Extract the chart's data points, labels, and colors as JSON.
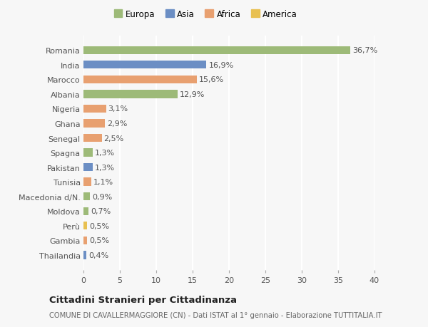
{
  "categories": [
    "Thailandia",
    "Gambia",
    "Perù",
    "Moldova",
    "Macedonia d/N.",
    "Tunisia",
    "Pakistan",
    "Spagna",
    "Senegal",
    "Ghana",
    "Nigeria",
    "Albania",
    "Marocco",
    "India",
    "Romania"
  ],
  "values": [
    0.4,
    0.5,
    0.5,
    0.7,
    0.9,
    1.1,
    1.3,
    1.3,
    2.5,
    2.9,
    3.1,
    12.9,
    15.6,
    16.9,
    36.7
  ],
  "labels": [
    "0,4%",
    "0,5%",
    "0,5%",
    "0,7%",
    "0,9%",
    "1,1%",
    "1,3%",
    "1,3%",
    "2,5%",
    "2,9%",
    "3,1%",
    "12,9%",
    "15,6%",
    "16,9%",
    "36,7%"
  ],
  "bar_colors": [
    "#6b8ec4",
    "#e8a070",
    "#e8c050",
    "#9dba78",
    "#9dba78",
    "#e8a070",
    "#6b8ec4",
    "#9dba78",
    "#e8a070",
    "#e8a070",
    "#e8a070",
    "#9dba78",
    "#e8a070",
    "#6b8ec4",
    "#9dba78"
  ],
  "legend_labels": [
    "Europa",
    "Asia",
    "Africa",
    "America"
  ],
  "legend_colors": [
    "#9dba78",
    "#6b8ec4",
    "#e8a070",
    "#e8c050"
  ],
  "xlim": [
    0,
    40
  ],
  "xticks": [
    0,
    5,
    10,
    15,
    20,
    25,
    30,
    35,
    40
  ],
  "title": "Cittadini Stranieri per Cittadinanza",
  "subtitle": "COMUNE DI CAVALLERMAGGIORE (CN) - Dati ISTAT al 1° gennaio - Elaborazione TUTTITALIA.IT",
  "bg_color": "#f7f7f7",
  "bar_height": 0.55,
  "grid_color": "#ffffff",
  "tick_label_fontsize": 8.0,
  "value_fontsize": 8.0
}
